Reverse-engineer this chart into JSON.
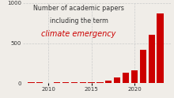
{
  "years": [
    2008,
    2009,
    2010,
    2011,
    2012,
    2013,
    2014,
    2015,
    2016,
    2017,
    2018,
    2019,
    2020,
    2021,
    2022,
    2023
  ],
  "values": [
    10,
    15,
    8,
    18,
    12,
    10,
    18,
    15,
    18,
    30,
    70,
    130,
    160,
    420,
    600,
    870
  ],
  "bar_color": "#cc0000",
  "background_color": "#f0ede8",
  "grid_color": "#cccccc",
  "text_color": "#333333",
  "red_text_color": "#cc0000",
  "title_line1": "Number of academic papers",
  "title_line2": "including the term",
  "title_line3": "climate emergency",
  "ylim": [
    0,
    1000
  ],
  "yticks": [
    0,
    500,
    1000
  ],
  "xticks": [
    2010,
    2015,
    2020
  ],
  "title_fontsize": 5.8,
  "italic_fontsize": 7.0
}
